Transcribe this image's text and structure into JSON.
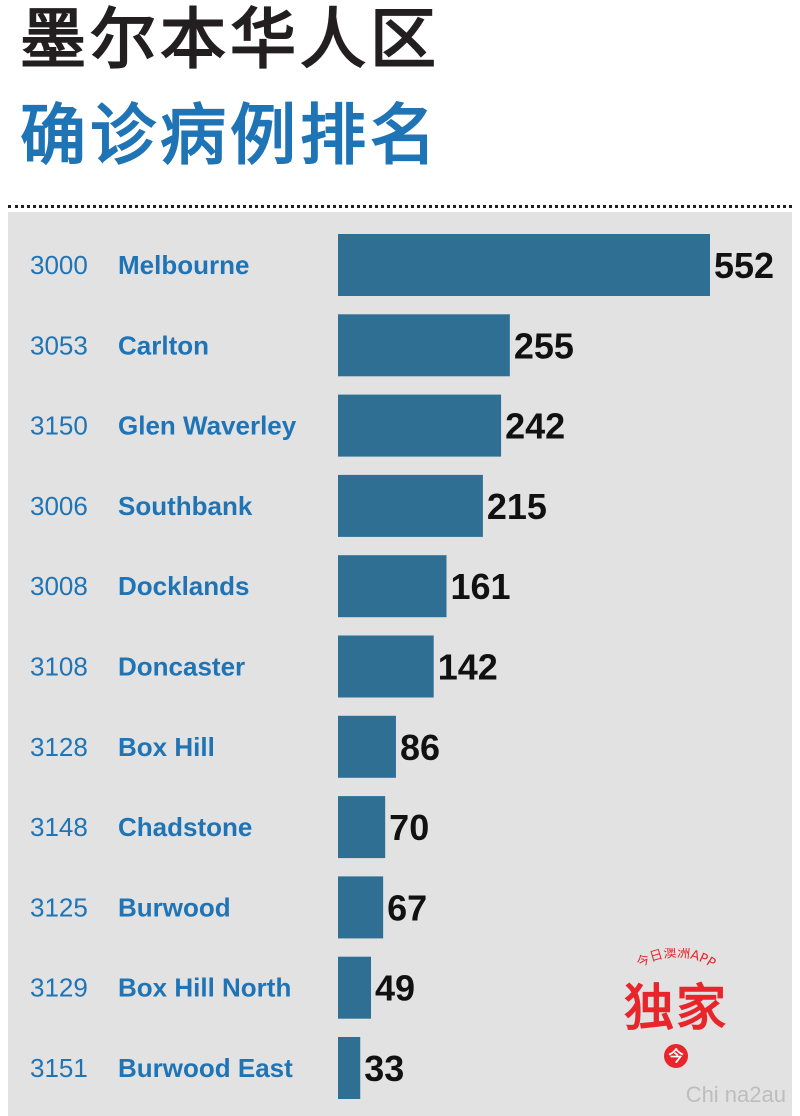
{
  "title": {
    "line1": "墨尔本华人区",
    "line2": "确诊病例排名"
  },
  "chart_data": {
    "type": "bar",
    "orientation": "horizontal",
    "postcodes": [
      "3000",
      "3053",
      "3150",
      "3006",
      "3008",
      "3108",
      "3128",
      "3148",
      "3125",
      "3129",
      "3151"
    ],
    "categories": [
      "Melbourne",
      "Carlton",
      "Glen Waverley",
      "Southbank",
      "Docklands",
      "Doncaster",
      "Box Hill",
      "Chadstone",
      "Burwood",
      "Box Hill North",
      "Burwood East"
    ],
    "values": [
      552,
      255,
      242,
      215,
      161,
      142,
      86,
      70,
      67,
      49,
      33
    ],
    "xlim": [
      0,
      552
    ],
    "bar_color": "#2f6f94",
    "label_color": "#1f74b6",
    "grid": false
  },
  "badge": {
    "arc_text": "今日澳洲APP",
    "main_text": "独家",
    "dot_text": "今",
    "color": "#e8252a"
  },
  "watermark": "Chi na2au"
}
